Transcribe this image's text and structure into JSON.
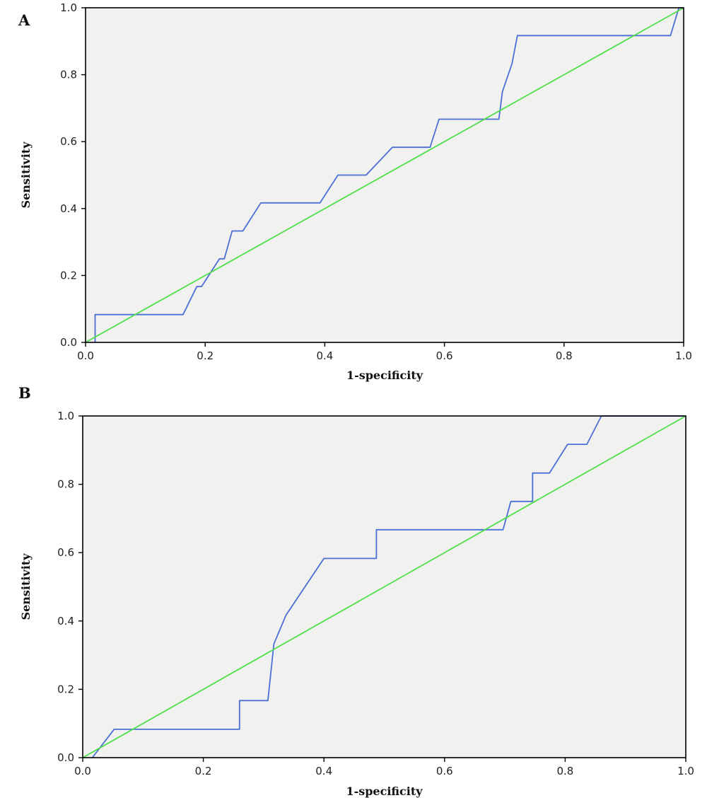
{
  "chart_data": [
    {
      "type": "line",
      "panel_label": "A",
      "xlabel": "1-specificity",
      "ylabel": "Sensitivity",
      "xlim": [
        0,
        1
      ],
      "ylim": [
        0,
        1
      ],
      "x_ticks": [
        "0.0",
        "0.2",
        "0.4",
        "0.6",
        "0.8",
        "1.0"
      ],
      "y_ticks": [
        "0.0",
        "0.2",
        "0.4",
        "0.6",
        "0.8",
        "1.0"
      ],
      "grid": false,
      "series": [
        {
          "kind": "roc",
          "color": "#4a6fd6",
          "points": [
            [
              0.016,
              0.0
            ],
            [
              0.016,
              0.083
            ],
            [
              0.163,
              0.083
            ],
            [
              0.186,
              0.167
            ],
            [
              0.194,
              0.167
            ],
            [
              0.224,
              0.25
            ],
            [
              0.232,
              0.25
            ],
            [
              0.245,
              0.333
            ],
            [
              0.263,
              0.333
            ],
            [
              0.293,
              0.417
            ],
            [
              0.392,
              0.417
            ],
            [
              0.422,
              0.5
            ],
            [
              0.469,
              0.5
            ],
            [
              0.513,
              0.583
            ],
            [
              0.576,
              0.583
            ],
            [
              0.591,
              0.667
            ],
            [
              0.691,
              0.667
            ],
            [
              0.697,
              0.75
            ],
            [
              0.713,
              0.833
            ],
            [
              0.722,
              0.917
            ],
            [
              0.978,
              0.917
            ],
            [
              0.992,
              1.0
            ],
            [
              1.0,
              1.0
            ]
          ]
        },
        {
          "kind": "reference",
          "color": "#4fe04a",
          "points": [
            [
              0,
              0
            ],
            [
              1,
              1
            ]
          ]
        }
      ]
    },
    {
      "type": "line",
      "panel_label": "B",
      "xlabel": "1-specificity",
      "ylabel": "Sensitivity",
      "xlim": [
        0,
        1
      ],
      "ylim": [
        0,
        1
      ],
      "x_ticks": [
        "0.0",
        "0.2",
        "0.4",
        "0.6",
        "0.8",
        "1.0"
      ],
      "y_ticks": [
        "0.0",
        "0.2",
        "0.4",
        "0.6",
        "0.8",
        "1.0"
      ],
      "grid": false,
      "series": [
        {
          "kind": "roc",
          "color": "#4a6fd6",
          "points": [
            [
              0.016,
              0.0
            ],
            [
              0.052,
              0.083
            ],
            [
              0.26,
              0.083
            ],
            [
              0.26,
              0.167
            ],
            [
              0.307,
              0.167
            ],
            [
              0.317,
              0.333
            ],
            [
              0.337,
              0.417
            ],
            [
              0.4,
              0.583
            ],
            [
              0.487,
              0.583
            ],
            [
              0.487,
              0.667
            ],
            [
              0.697,
              0.667
            ],
            [
              0.71,
              0.75
            ],
            [
              0.746,
              0.75
            ],
            [
              0.746,
              0.833
            ],
            [
              0.774,
              0.833
            ],
            [
              0.804,
              0.917
            ],
            [
              0.836,
              0.917
            ],
            [
              0.86,
              1.0
            ],
            [
              1.0,
              1.0
            ]
          ]
        },
        {
          "kind": "reference",
          "color": "#4fe04a",
          "points": [
            [
              0,
              0
            ],
            [
              1,
              1
            ]
          ]
        }
      ]
    }
  ]
}
